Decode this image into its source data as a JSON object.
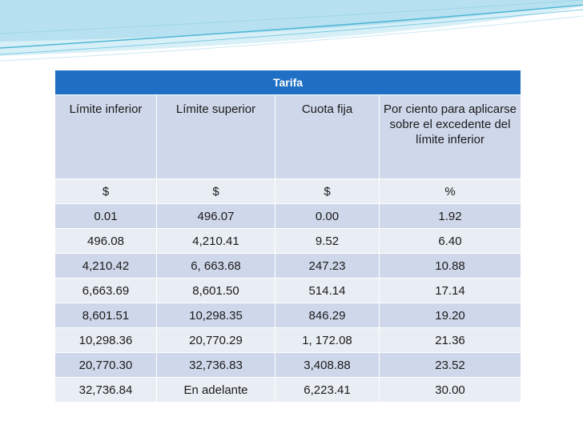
{
  "table": {
    "title": "Tarifa",
    "headers": [
      "Límite inferior",
      "Límite superior",
      "Cuota fija",
      "Por ciento para aplicarse sobre el excedente del límite inferior"
    ],
    "units": [
      "$",
      "$",
      "$",
      "%"
    ],
    "rows": [
      [
        "0.01",
        "496.07",
        "0.00",
        "1.92"
      ],
      [
        "496.08",
        "4,210.41",
        "9.52",
        "6.40"
      ],
      [
        "4,210.42",
        "6, 663.68",
        "247.23",
        "10.88"
      ],
      [
        "6,663.69",
        "8,601.50",
        "514.14",
        "17.14"
      ],
      [
        "8,601.51",
        "10,298.35",
        "846.29",
        "19.20"
      ],
      [
        "10,298.36",
        "20,770.29",
        "1, 172.08",
        "21.36"
      ],
      [
        "20,770.30",
        "32,736.83",
        "3,408.88",
        "23.52"
      ],
      [
        "32,736.84",
        "En adelante",
        "6,223.41",
        "30.00"
      ]
    ]
  },
  "colors": {
    "title_bg": "#1f6fc4",
    "header_bg": "#cfd8ea",
    "row_light": "#e9edf4",
    "row_dark": "#cfd8ea",
    "wave_light": "#bfe6f2",
    "wave_dark": "#4fb6d6"
  }
}
